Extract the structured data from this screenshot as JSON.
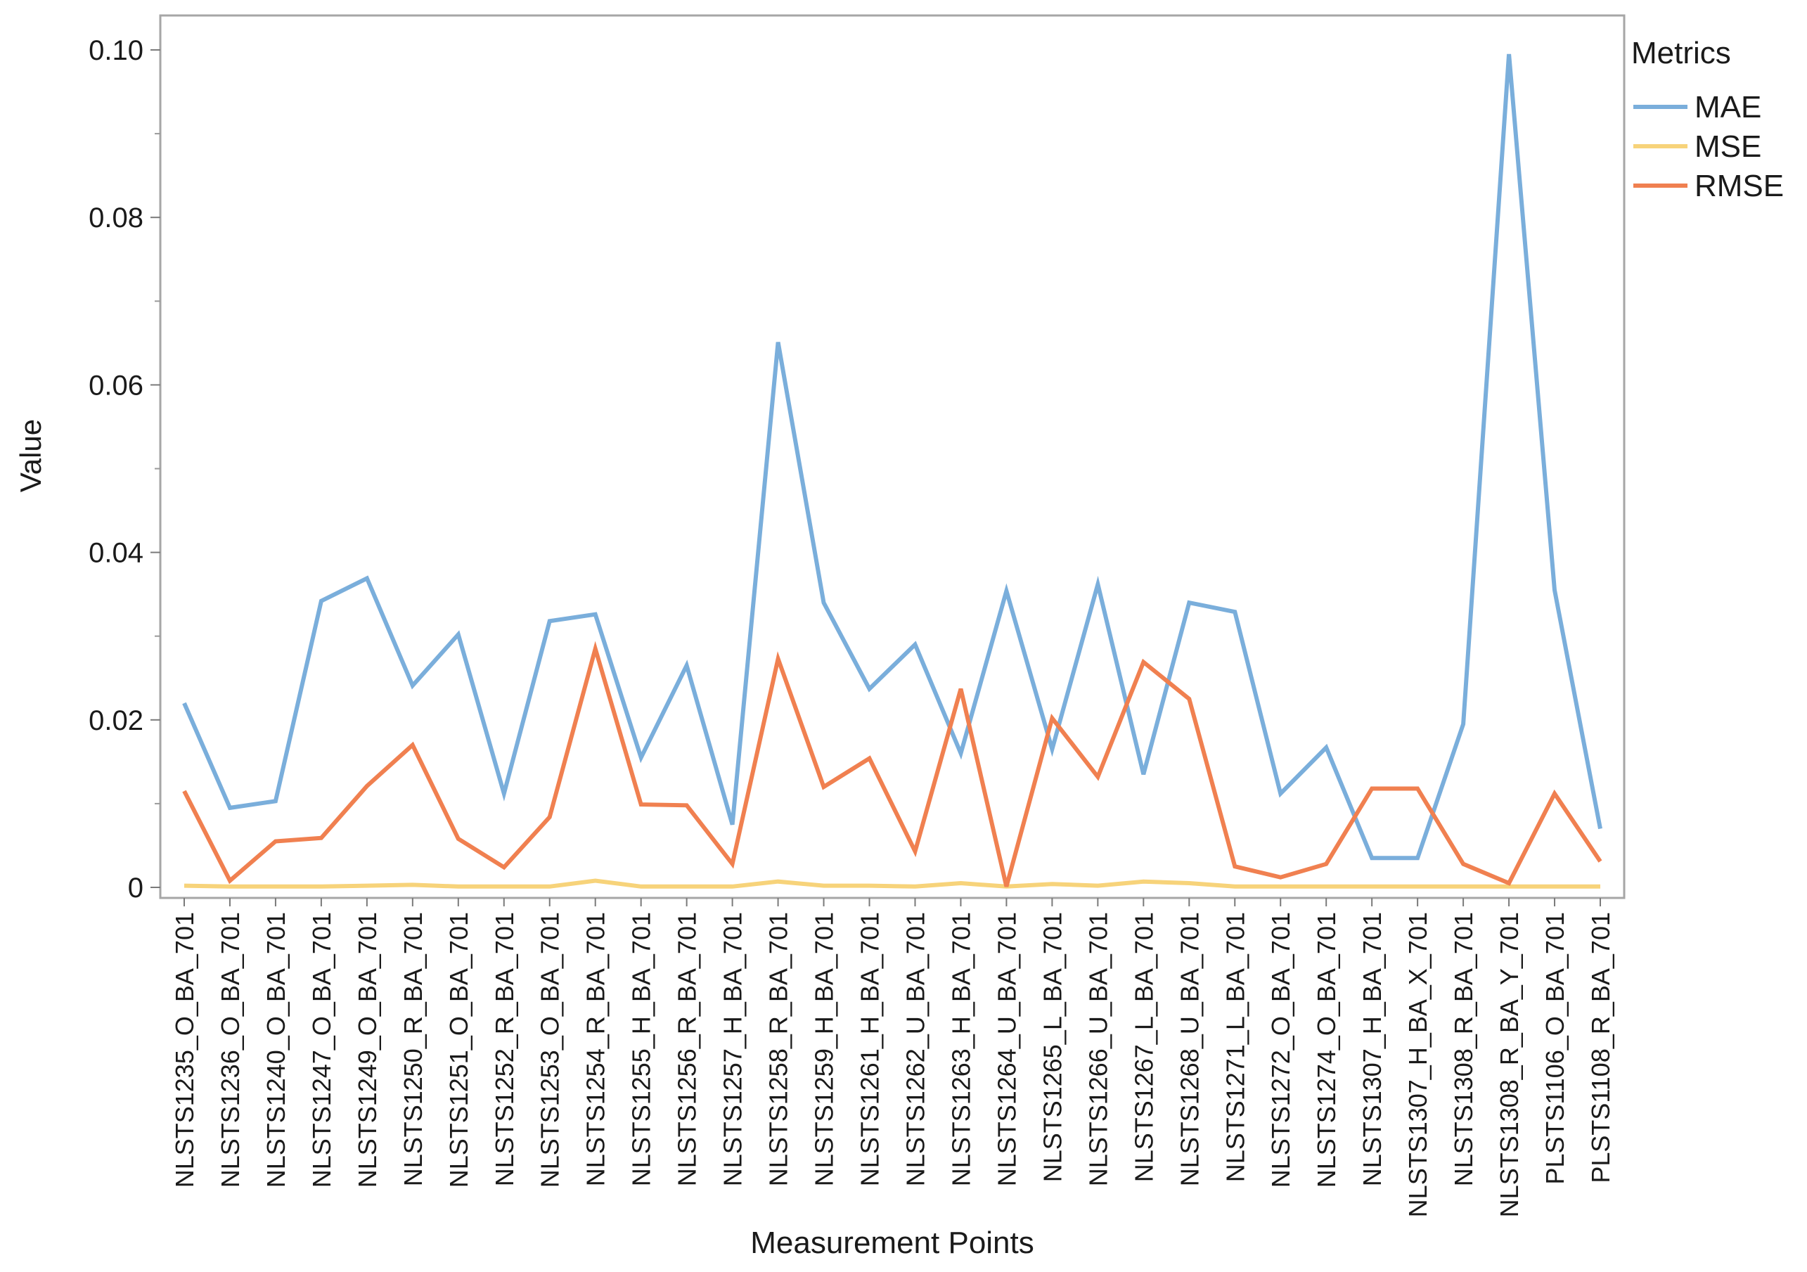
{
  "chart_data": {
    "type": "line",
    "title": "",
    "xlabel": "Measurement Points",
    "ylabel": "Value",
    "ylim": [
      0,
      0.1
    ],
    "yticks": [
      "0",
      "0.02",
      "0.04",
      "0.06",
      "0.08",
      "0.10"
    ],
    "grid": false,
    "legend": {
      "title": "Metrics",
      "position": "right"
    },
    "categories": [
      "NLSTS1235_O_BA_701",
      "NLSTS1236_O_BA_701",
      "NLSTS1240_O_BA_701",
      "NLSTS1247_O_BA_701",
      "NLSTS1249_O_BA_701",
      "NLSTS1250_R_BA_701",
      "NLSTS1251_O_BA_701",
      "NLSTS1252_R_BA_701",
      "NLSTS1253_O_BA_701",
      "NLSTS1254_R_BA_701",
      "NLSTS1255_H_BA_701",
      "NLSTS1256_R_BA_701",
      "NLSTS1257_H_BA_701",
      "NLSTS1258_R_BA_701",
      "NLSTS1259_H_BA_701",
      "NLSTS1261_H_BA_701",
      "NLSTS1262_U_BA_701",
      "NLSTS1263_H_BA_701",
      "NLSTS1264_U_BA_701",
      "NLSTS1265_L_BA_701",
      "NLSTS1266_U_BA_701",
      "NLSTS1267_L_BA_701",
      "NLSTS1268_U_BA_701",
      "NLSTS1271_L_BA_701",
      "NLSTS1272_O_BA_701",
      "NLSTS1274_O_BA_701",
      "NLSTS1307_H_BA_701",
      "NLSTS1307_H_BA_X_701",
      "NLSTS1308_R_BA_701",
      "NLSTS1308_R_BA_Y_701",
      "PLSTS1106_O_BA_701",
      "PLSTS1108_R_BA_701"
    ],
    "series": [
      {
        "name": "MAE",
        "color": "#7aaedb",
        "values": [
          0.022,
          0.0095,
          0.0103,
          0.0342,
          0.0369,
          0.0241,
          0.0302,
          0.0112,
          0.0318,
          0.0326,
          0.0155,
          0.0265,
          0.0075,
          0.0651,
          0.034,
          0.0237,
          0.029,
          0.016,
          0.0354,
          0.0165,
          0.0362,
          0.0135,
          0.034,
          0.0329,
          0.0112,
          0.0167,
          0.0035,
          0.0035,
          0.0195,
          0.0995,
          0.0355,
          0.007
        ]
      },
      {
        "name": "MSE",
        "color": "#f7d37a",
        "values": [
          0.0002,
          0.0001,
          0.0001,
          0.0001,
          0.0002,
          0.0003,
          0.0001,
          0.0001,
          0.0001,
          0.0008,
          0.0001,
          0.0001,
          0.0001,
          0.0007,
          0.0002,
          0.0002,
          0.0001,
          0.0005,
          0.0001,
          0.0004,
          0.0002,
          0.0007,
          0.0005,
          0.0001,
          0.0001,
          0.0001,
          0.0001,
          0.0001,
          0.0001,
          0.0001,
          0.0001,
          0.0001
        ]
      },
      {
        "name": "RMSE",
        "color": "#f08050",
        "values": [
          0.0115,
          0.0008,
          0.0055,
          0.0059,
          0.0121,
          0.017,
          0.0058,
          0.0024,
          0.0084,
          0.0285,
          0.0099,
          0.0098,
          0.0028,
          0.0273,
          0.012,
          0.0154,
          0.0043,
          0.0237,
          0.0001,
          0.0202,
          0.0132,
          0.0269,
          0.0225,
          0.0025,
          0.0012,
          0.0028,
          0.0118,
          0.0118,
          0.0028,
          0.0005,
          0.0112,
          0.0031
        ]
      }
    ]
  }
}
